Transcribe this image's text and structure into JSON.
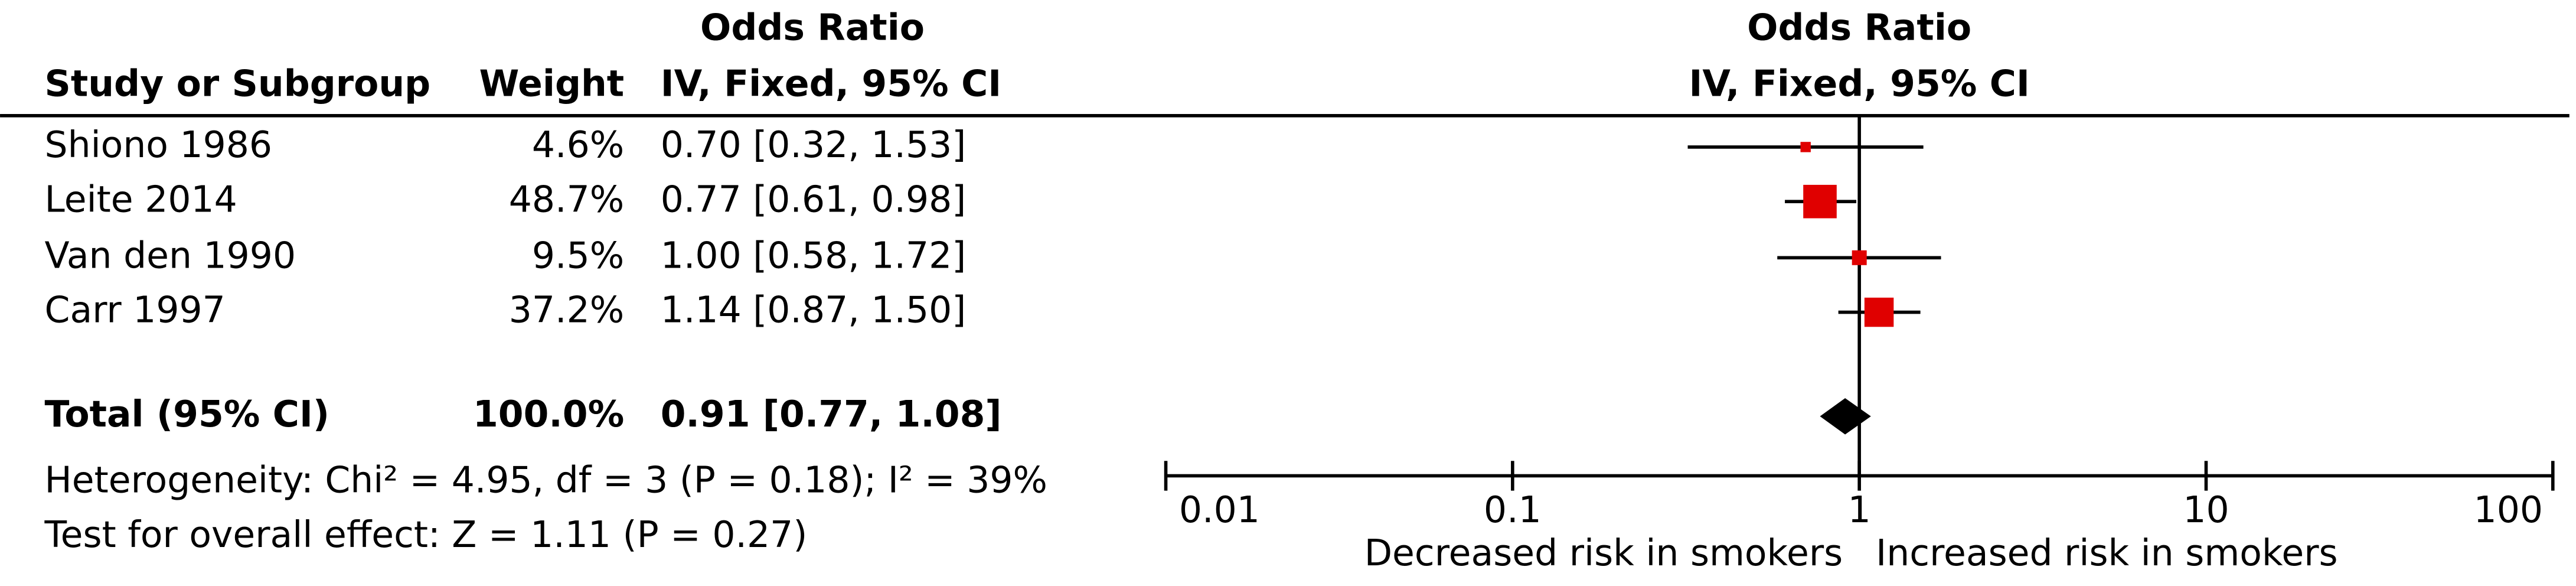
{
  "chart_data": {
    "type": "forest",
    "study_header": "Study or Subgroup",
    "weight_header": "Weight",
    "effect_header": "Odds Ratio",
    "method_header": "IV, Fixed, 95% CI",
    "categories": [
      "Shiono 1986",
      "Leite 2014",
      "Van den 1990",
      "Carr 1997"
    ],
    "weights": [
      4.6,
      48.7,
      9.5,
      37.2
    ],
    "weight_labels": [
      "4.6%",
      "48.7%",
      "9.5%",
      "37.2%"
    ],
    "values": [
      0.7,
      0.77,
      1.0,
      1.14
    ],
    "lower": [
      0.32,
      0.61,
      0.58,
      0.87
    ],
    "upper": [
      1.53,
      0.98,
      1.72,
      1.5
    ],
    "value_labels": [
      "0.70 [0.32, 1.53]",
      "0.77 [0.61, 0.98]",
      "1.00 [0.58, 1.72]",
      "1.14 [0.87, 1.50]"
    ],
    "color": "#e00000",
    "total": {
      "label": "Total (95% CI)",
      "weight": 100.0,
      "weight_label": "100.0%",
      "value": 0.91,
      "lower": 0.77,
      "upper": 1.08,
      "value_label": "0.91 [0.77, 1.08]",
      "color": "#000000"
    },
    "heterogeneity": "Heterogeneity: Chi² = 4.95, df = 3 (P = 0.18); I² = 39%",
    "overall_effect": "Test for overall effect: Z = 1.11 (P = 0.27)",
    "xlim": [
      0.01,
      100
    ],
    "xticks": [
      0.01,
      0.1,
      1,
      10,
      100
    ],
    "log_x": true,
    "x_labels": [
      "Decreased risk in smokers",
      "Increased risk in smokers"
    ]
  }
}
